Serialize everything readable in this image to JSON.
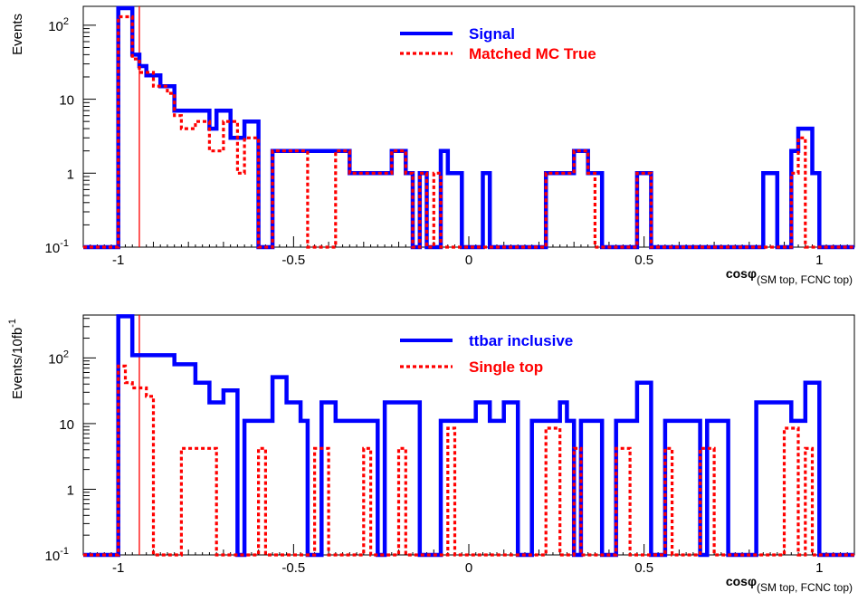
{
  "chart_data": [
    {
      "type": "histogram",
      "ylabel": "Events",
      "xlabel_main": "cosφ",
      "xlabel_sub": "(SM top, FCNC top)",
      "x_range": [
        -1.1,
        1.1
      ],
      "y_range": [
        0.1,
        180
      ],
      "y_scale": "log",
      "x_ticks": [
        {
          "v": -1,
          "label": "-1"
        },
        {
          "v": -0.5,
          "label": "-0.5"
        },
        {
          "v": 0,
          "label": "0"
        },
        {
          "v": 0.5,
          "label": "0.5"
        },
        {
          "v": 1,
          "label": "1"
        }
      ],
      "y_ticks": [
        {
          "v": 0.1,
          "base": "10",
          "exp": "-1"
        },
        {
          "v": 1,
          "base": "1",
          "exp": ""
        },
        {
          "v": 10,
          "base": "10",
          "exp": ""
        },
        {
          "v": 100,
          "base": "10",
          "exp": "2"
        }
      ],
      "marker_line_x": -0.94,
      "legend_location": "top-center",
      "series": [
        {
          "name": "Signal",
          "color": "#0000ff",
          "style": "solid",
          "x_start": -1.1,
          "x_end": 1.1,
          "floor": 0.1,
          "steps": [
            [
              -1.0,
              170
            ],
            [
              -0.96,
              40
            ],
            [
              -0.94,
              28
            ],
            [
              -0.92,
              21
            ],
            [
              -0.88,
              15
            ],
            [
              -0.84,
              7
            ],
            [
              -0.74,
              4
            ],
            [
              -0.72,
              7
            ],
            [
              -0.68,
              3
            ],
            [
              -0.64,
              5
            ],
            [
              -0.6,
              0.1
            ],
            [
              -0.56,
              2
            ],
            [
              -0.38,
              2
            ],
            [
              -0.34,
              1
            ],
            [
              -0.22,
              2
            ],
            [
              -0.18,
              1
            ],
            [
              -0.16,
              0.1
            ],
            [
              -0.14,
              1
            ],
            [
              -0.12,
              0.1
            ],
            [
              -0.08,
              2
            ],
            [
              -0.06,
              1
            ],
            [
              -0.02,
              0.1
            ],
            [
              0.04,
              1
            ],
            [
              0.06,
              0.1
            ],
            [
              0.22,
              1
            ],
            [
              0.3,
              2
            ],
            [
              0.34,
              1
            ],
            [
              0.38,
              0.1
            ],
            [
              0.48,
              1
            ],
            [
              0.52,
              0.1
            ],
            [
              0.84,
              1
            ],
            [
              0.88,
              0.1
            ],
            [
              0.92,
              2
            ],
            [
              0.94,
              4
            ],
            [
              0.98,
              1
            ],
            [
              1.0,
              0.1
            ]
          ]
        },
        {
          "name": "Matched MC True",
          "color": "#ff0000",
          "style": "dashed",
          "x_start": -1.1,
          "x_end": 1.1,
          "floor": 0.1,
          "steps": [
            [
              -1.0,
              130
            ],
            [
              -0.96,
              35
            ],
            [
              -0.94,
              23
            ],
            [
              -0.9,
              15
            ],
            [
              -0.86,
              12
            ],
            [
              -0.84,
              6
            ],
            [
              -0.82,
              4
            ],
            [
              -0.78,
              5
            ],
            [
              -0.74,
              2
            ],
            [
              -0.7,
              5
            ],
            [
              -0.66,
              1
            ],
            [
              -0.64,
              3
            ],
            [
              -0.6,
              0.1
            ],
            [
              -0.56,
              2
            ],
            [
              -0.46,
              0.1
            ],
            [
              -0.38,
              2
            ],
            [
              -0.34,
              1
            ],
            [
              -0.22,
              2
            ],
            [
              -0.18,
              1
            ],
            [
              -0.16,
              0.1
            ],
            [
              -0.14,
              1
            ],
            [
              -0.12,
              0.1
            ],
            [
              -0.1,
              1
            ],
            [
              -0.08,
              0.1
            ],
            [
              0.22,
              1
            ],
            [
              0.3,
              2
            ],
            [
              0.34,
              1
            ],
            [
              0.36,
              0.1
            ],
            [
              0.48,
              1
            ],
            [
              0.52,
              0.1
            ],
            [
              0.92,
              1
            ],
            [
              0.94,
              3
            ],
            [
              0.96,
              0.1
            ]
          ]
        }
      ]
    },
    {
      "type": "histogram",
      "ylabel": "Events/10fb",
      "ylabel_sup": "-1",
      "xlabel_main": "cosφ",
      "xlabel_sub": "(SM top, FCNC top)",
      "x_range": [
        -1.1,
        1.1
      ],
      "y_range": [
        0.1,
        450
      ],
      "y_scale": "log",
      "x_ticks": [
        {
          "v": -1,
          "label": "-1"
        },
        {
          "v": -0.5,
          "label": "-0.5"
        },
        {
          "v": 0,
          "label": "0"
        },
        {
          "v": 0.5,
          "label": "0.5"
        },
        {
          "v": 1,
          "label": "1"
        }
      ],
      "y_ticks": [
        {
          "v": 0.1,
          "base": "10",
          "exp": "-1"
        },
        {
          "v": 1,
          "base": "1",
          "exp": ""
        },
        {
          "v": 10,
          "base": "10",
          "exp": ""
        },
        {
          "v": 100,
          "base": "10",
          "exp": "2"
        }
      ],
      "marker_line_x": -0.94,
      "legend_location": "top-center",
      "series": [
        {
          "name": "ttbar inclusive",
          "color": "#0000ff",
          "style": "solid",
          "x_start": -1.1,
          "x_end": 1.1,
          "floor": 0.1,
          "steps": [
            [
              -1.0,
              430
            ],
            [
              -0.96,
              110
            ],
            [
              -0.84,
              80
            ],
            [
              -0.78,
              42
            ],
            [
              -0.74,
              21
            ],
            [
              -0.7,
              32
            ],
            [
              -0.66,
              0.1
            ],
            [
              -0.64,
              11
            ],
            [
              -0.56,
              51
            ],
            [
              -0.52,
              21
            ],
            [
              -0.48,
              11
            ],
            [
              -0.46,
              0.1
            ],
            [
              -0.42,
              21
            ],
            [
              -0.38,
              11
            ],
            [
              -0.26,
              0.1
            ],
            [
              -0.24,
              21
            ],
            [
              -0.14,
              0.1
            ],
            [
              -0.08,
              11
            ],
            [
              0.02,
              21
            ],
            [
              0.06,
              11
            ],
            [
              0.1,
              21
            ],
            [
              0.14,
              0.1
            ],
            [
              0.18,
              11
            ],
            [
              0.26,
              21
            ],
            [
              0.28,
              11
            ],
            [
              0.3,
              0.1
            ],
            [
              0.32,
              11
            ],
            [
              0.38,
              0.1
            ],
            [
              0.42,
              11
            ],
            [
              0.48,
              42
            ],
            [
              0.52,
              0.1
            ],
            [
              0.56,
              11
            ],
            [
              0.66,
              0.1
            ],
            [
              0.68,
              11
            ],
            [
              0.74,
              0.1
            ],
            [
              0.82,
              21
            ],
            [
              0.92,
              11
            ],
            [
              0.96,
              42
            ],
            [
              1.0,
              0.1
            ]
          ]
        },
        {
          "name": "Single top",
          "color": "#ff0000",
          "style": "dashed",
          "x_start": -1.1,
          "x_end": 1.1,
          "floor": 0.1,
          "steps": [
            [
              -1.0,
              75
            ],
            [
              -0.98,
              42
            ],
            [
              -0.96,
              35
            ],
            [
              -0.92,
              26
            ],
            [
              -0.9,
              0.1
            ],
            [
              -0.82,
              4.2
            ],
            [
              -0.72,
              0.1
            ],
            [
              -0.6,
              4.2
            ],
            [
              -0.58,
              0.1
            ],
            [
              -0.44,
              4.2
            ],
            [
              -0.4,
              0.1
            ],
            [
              -0.3,
              4.2
            ],
            [
              -0.28,
              0.1
            ],
            [
              -0.2,
              4.2
            ],
            [
              -0.18,
              0.1
            ],
            [
              -0.06,
              8.5
            ],
            [
              -0.04,
              0.1
            ],
            [
              0.22,
              8.5
            ],
            [
              0.26,
              0.1
            ],
            [
              0.3,
              4.2
            ],
            [
              0.32,
              0.1
            ],
            [
              0.42,
              4.2
            ],
            [
              0.46,
              0.1
            ],
            [
              0.56,
              4.2
            ],
            [
              0.58,
              0.1
            ],
            [
              0.66,
              4.2
            ],
            [
              0.7,
              0.1
            ],
            [
              0.9,
              8.5
            ],
            [
              0.94,
              0.1
            ],
            [
              0.96,
              4.2
            ],
            [
              0.98,
              0.1
            ]
          ]
        }
      ]
    }
  ]
}
